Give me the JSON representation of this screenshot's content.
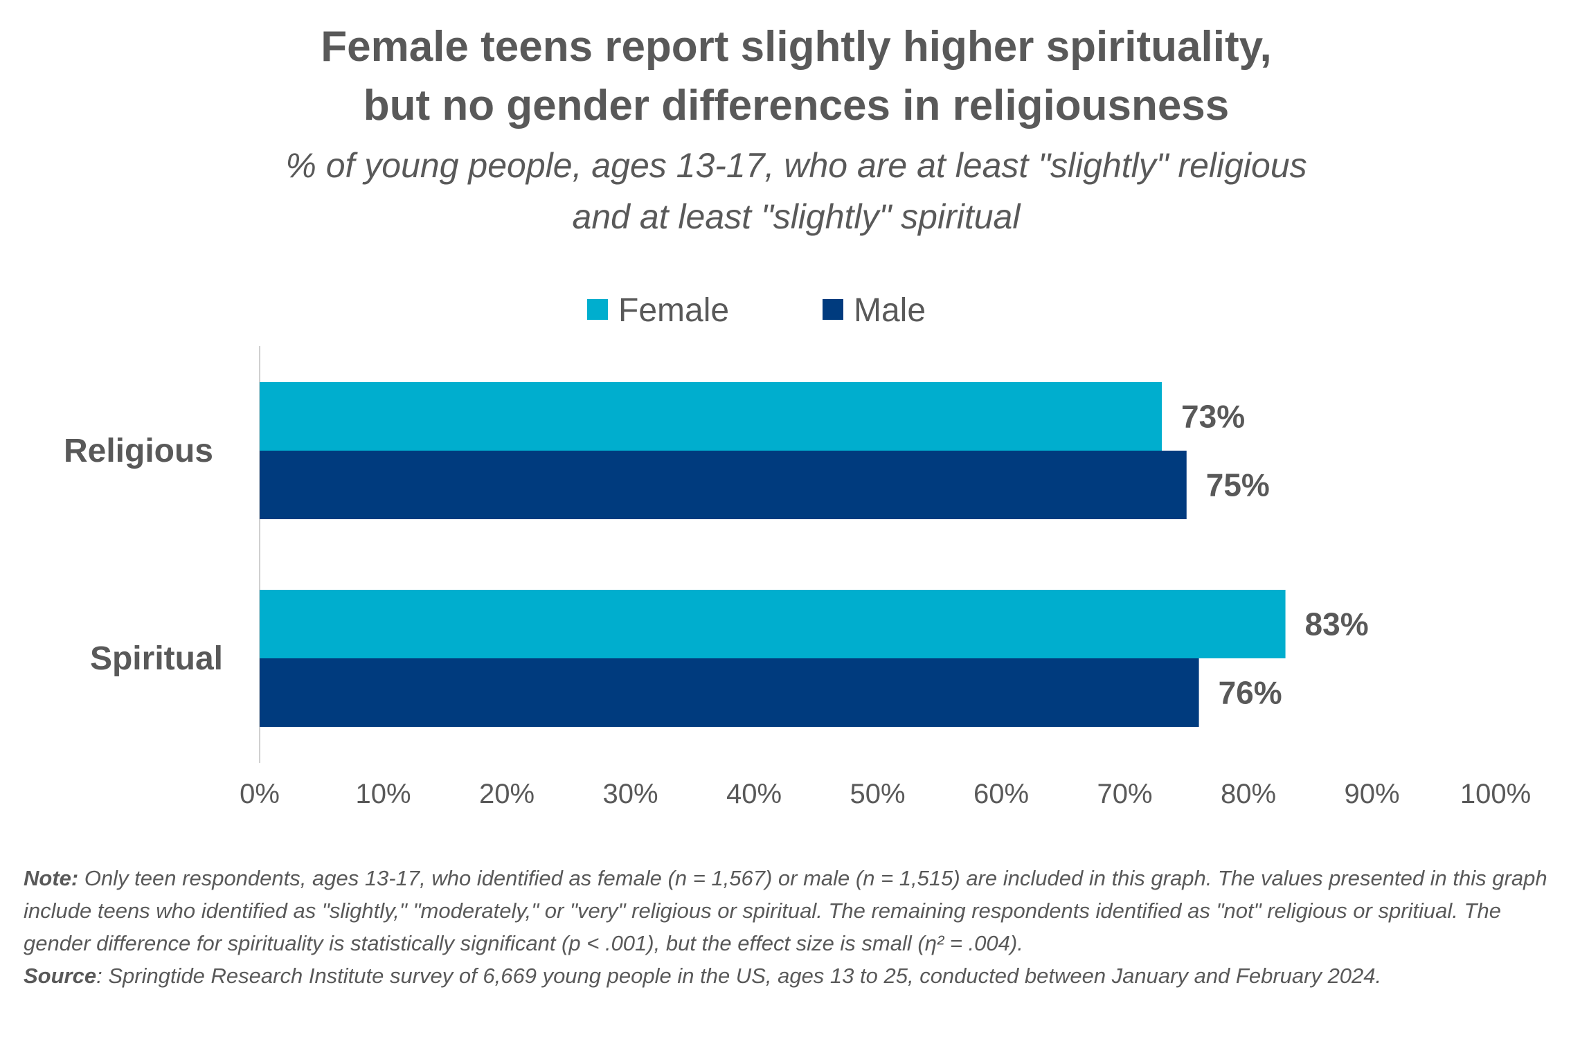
{
  "chart_data": {
    "type": "bar",
    "orientation": "horizontal",
    "title": [
      "Female teens report slightly higher spirituality,",
      "but no gender differences in religiousness"
    ],
    "subtitle": [
      "% of young people, ages 13-17, who are at least \"slightly\" religious",
      "and at least \"slightly\" spiritual"
    ],
    "categories": [
      "Religious",
      "Spiritual"
    ],
    "series": [
      {
        "name": "Female",
        "color": "#00AECE",
        "values": [
          73,
          83
        ],
        "labels": [
          "73%",
          "83%"
        ]
      },
      {
        "name": "Male",
        "color": "#003B7E",
        "values": [
          75,
          76
        ],
        "labels": [
          "75%",
          "76%"
        ]
      }
    ],
    "x_ticks": [
      "0%",
      "10%",
      "20%",
      "30%",
      "40%",
      "50%",
      "60%",
      "70%",
      "80%",
      "90%",
      "100%"
    ],
    "xlim": [
      0,
      100
    ],
    "grid": false,
    "legend_position": "top-center",
    "xlabel": "",
    "ylabel": ""
  },
  "footnote": {
    "note_label": "Note:",
    "note_text": " Only teen respondents, ages 13-17, who identified as female (n = 1,567) or male (n = 1,515) are included in this graph. The values presented in this graph include teens who identified as \"slightly,\" \"moderately,\" or \"very\" religious or spiritual. The remaining respondents identified as \"not\" religious or spritiual. The gender difference for spirituality is statistically significant (p < .001), but the effect size is small (η² = .004).",
    "source_label": "Source",
    "source_text": ": Springtide Research Institute survey of 6,669 young people in the US, ages 13 to 25, conducted between January and February 2024."
  }
}
